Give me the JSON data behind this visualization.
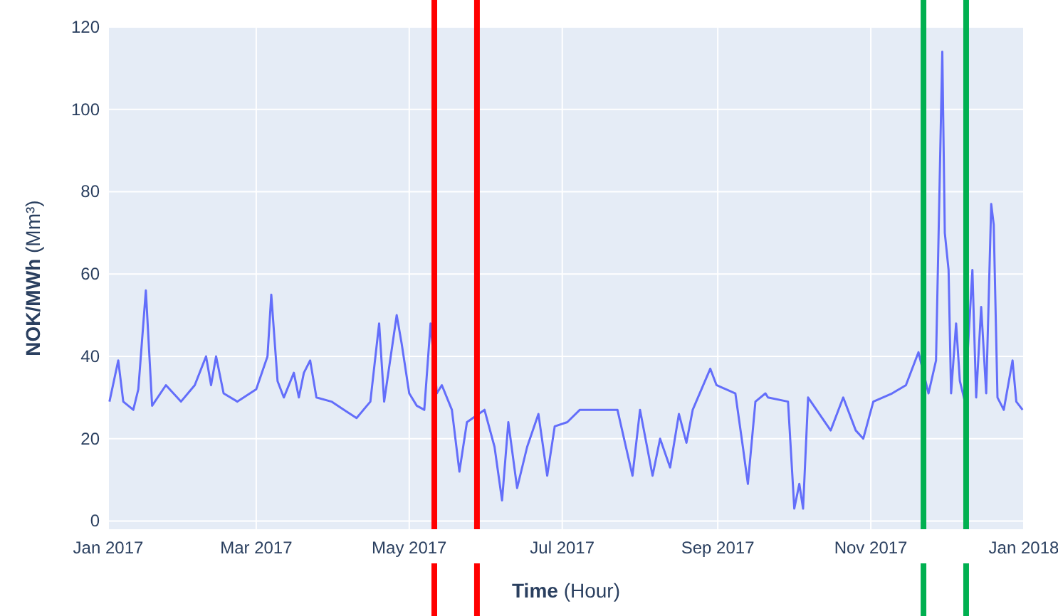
{
  "chart_data": {
    "type": "line",
    "xlabel": "Time (Hour)",
    "ylabel": "NOK/MWh (Mm³)",
    "xlim": [
      "2017-01-01",
      "2018-01-01"
    ],
    "xticks": [
      {
        "value": "2017-01-01",
        "label": "Jan 2017"
      },
      {
        "value": "2017-03-01",
        "label": "Mar 2017"
      },
      {
        "value": "2017-05-01",
        "label": "May 2017"
      },
      {
        "value": "2017-07-01",
        "label": "Jul 2017"
      },
      {
        "value": "2017-09-01",
        "label": "Sep 2017"
      },
      {
        "value": "2017-11-01",
        "label": "Nov 2017"
      },
      {
        "value": "2018-01-01",
        "label": "Jan 2018"
      }
    ],
    "ylim": [
      -2,
      120
    ],
    "yticks": [
      0,
      20,
      40,
      60,
      80,
      100,
      120
    ],
    "grid": true,
    "x": [
      "2017-01-01T12:00",
      "2017-01-05",
      "2017-01-07",
      "2017-01-11",
      "2017-01-13",
      "2017-01-16",
      "2017-01-18T12:00",
      "2017-01-24",
      "2017-01-30",
      "2017-02-04T12:00",
      "2017-02-09",
      "2017-02-11",
      "2017-02-13",
      "2017-02-16",
      "2017-02-21T12:00",
      "2017-03-01",
      "2017-03-05T12:00",
      "2017-03-07",
      "2017-03-09T12:00",
      "2017-03-12",
      "2017-03-16",
      "2017-03-18",
      "2017-03-20",
      "2017-03-22T12:00",
      "2017-03-25",
      "2017-03-31",
      "2017-04-05",
      "2017-04-10",
      "2017-04-15T12:00",
      "2017-04-19",
      "2017-04-21",
      "2017-04-26",
      "2017-04-28",
      "2017-05-01",
      "2017-05-04",
      "2017-05-07",
      "2017-05-09T12:00",
      "2017-05-12",
      "2017-05-14",
      "2017-05-18",
      "2017-05-21",
      "2017-05-24",
      "2017-05-31",
      "2017-06-04",
      "2017-06-07",
      "2017-06-09T12:00",
      "2017-06-13",
      "2017-06-17",
      "2017-06-21T12:00",
      "2017-06-25",
      "2017-06-28",
      "2017-07-03",
      "2017-07-08",
      "2017-07-13T12:00",
      "2017-07-23",
      "2017-07-29",
      "2017-08-01",
      "2017-08-06",
      "2017-08-09",
      "2017-08-13",
      "2017-08-16T12:00",
      "2017-08-19T12:00",
      "2017-08-22",
      "2017-08-29",
      "2017-08-31T12:00",
      "2017-09-08",
      "2017-09-11",
      "2017-09-13",
      "2017-09-16",
      "2017-09-20",
      "2017-09-21",
      "2017-09-29",
      "2017-10-01T12:00",
      "2017-10-03T12:00",
      "2017-10-05",
      "2017-10-07",
      "2017-10-16",
      "2017-10-21",
      "2017-10-26",
      "2017-10-29",
      "2017-11-02",
      "2017-11-09T12:00",
      "2017-11-15",
      "2017-11-20",
      "2017-11-24",
      "2017-11-27",
      "2017-11-29T12:00",
      "2017-11-30T12:00",
      "2017-12-02",
      "2017-12-03",
      "2017-12-05",
      "2017-12-06T12:00",
      "2017-12-08T12:00",
      "2017-12-11T12:00",
      "2017-12-13",
      "2017-12-15",
      "2017-12-17",
      "2017-12-19",
      "2017-12-20",
      "2017-12-21T12:00",
      "2017-12-24",
      "2017-12-27T12:00",
      "2017-12-29",
      "2017-12-31T12:00"
    ],
    "series": [
      {
        "color": "#636efa",
        "values": [
          29,
          39,
          29,
          27,
          32,
          56,
          28,
          33,
          29,
          33,
          40,
          33,
          40,
          31,
          29,
          32,
          40,
          55,
          34,
          30,
          36,
          30,
          36,
          39,
          30,
          29,
          27,
          25,
          29,
          48,
          29,
          50,
          43,
          31,
          28,
          27,
          48,
          31,
          33,
          27,
          12,
          24,
          27,
          18,
          5,
          24,
          8,
          18,
          26,
          11,
          23,
          24,
          27,
          27,
          27,
          11,
          27,
          11,
          20,
          13,
          26,
          19,
          27,
          37,
          33,
          31,
          18,
          9,
          29,
          31,
          30,
          29,
          3,
          9,
          3,
          30,
          22,
          30,
          22,
          20,
          29,
          31,
          33,
          41,
          31,
          39,
          114,
          70,
          61,
          31,
          48,
          34,
          29,
          61,
          30,
          52,
          31,
          77,
          72,
          30,
          27,
          39,
          29,
          27
        ]
      }
    ],
    "ref_lines": [
      {
        "axis": "x",
        "value": "2017-05-11",
        "color": "#ff0000"
      },
      {
        "axis": "x",
        "value": "2017-05-28",
        "color": "#ff0000"
      },
      {
        "axis": "x",
        "value": "2017-11-22",
        "color": "#00b050"
      },
      {
        "axis": "x",
        "value": "2017-12-09",
        "color": "#00b050"
      }
    ]
  }
}
